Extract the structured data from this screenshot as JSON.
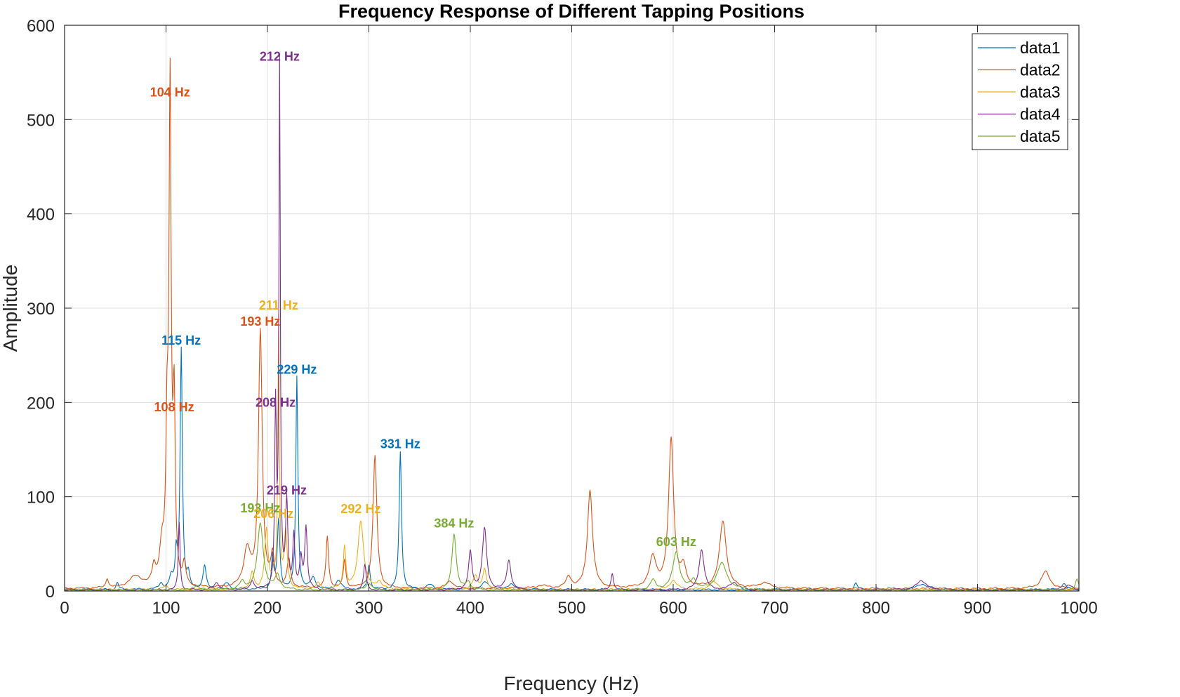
{
  "chart_data": {
    "type": "line",
    "title": "Frequency Response of Different Tapping Positions",
    "xlabel": "Frequency (Hz)",
    "ylabel": "Amplitude",
    "xlim": [
      0,
      1000
    ],
    "ylim": [
      0,
      600
    ],
    "xticks": [
      0,
      100,
      200,
      300,
      400,
      500,
      600,
      700,
      800,
      900,
      1000
    ],
    "yticks": [
      0,
      100,
      200,
      300,
      400,
      500,
      600
    ],
    "grid": true,
    "legend_position": "top-right",
    "series": [
      {
        "name": "data1",
        "color": "#0072BD",
        "baseline": 1.5,
        "peaks": [
          {
            "x": 52,
            "y": 7,
            "w": 1.5
          },
          {
            "x": 95,
            "y": 6,
            "w": 2
          },
          {
            "x": 105,
            "y": 12,
            "w": 2
          },
          {
            "x": 110,
            "y": 35,
            "w": 1.2
          },
          {
            "x": 115,
            "y": 255,
            "w": 1.3
          },
          {
            "x": 122,
            "y": 14,
            "w": 1.5
          },
          {
            "x": 138,
            "y": 25,
            "w": 1.8
          },
          {
            "x": 160,
            "y": 7,
            "w": 3
          },
          {
            "x": 205,
            "y": 35,
            "w": 1.2
          },
          {
            "x": 211,
            "y": 73,
            "w": 1.5
          },
          {
            "x": 229,
            "y": 225,
            "w": 1.2
          },
          {
            "x": 245,
            "y": 12,
            "w": 3
          },
          {
            "x": 270,
            "y": 10,
            "w": 3
          },
          {
            "x": 300,
            "y": 26,
            "w": 1.5
          },
          {
            "x": 331,
            "y": 146,
            "w": 1.4
          },
          {
            "x": 360,
            "y": 5,
            "w": 4
          },
          {
            "x": 415,
            "y": 8,
            "w": 4
          },
          {
            "x": 440,
            "y": 6,
            "w": 4
          },
          {
            "x": 780,
            "y": 7,
            "w": 2
          },
          {
            "x": 845,
            "y": 6,
            "w": 6
          },
          {
            "x": 985,
            "y": 6,
            "w": 3
          }
        ]
      },
      {
        "name": "data2",
        "color": "#D95319",
        "baseline": 2.5,
        "peaks": [
          {
            "x": 42,
            "y": 10,
            "w": 1.5
          },
          {
            "x": 70,
            "y": 12,
            "w": 8
          },
          {
            "x": 88,
            "y": 18,
            "w": 2
          },
          {
            "x": 96,
            "y": 38,
            "w": 3
          },
          {
            "x": 101,
            "y": 135,
            "w": 1.4
          },
          {
            "x": 104,
            "y": 515,
            "w": 1.3
          },
          {
            "x": 108,
            "y": 180,
            "w": 1.3
          },
          {
            "x": 118,
            "y": 22,
            "w": 1.8
          },
          {
            "x": 180,
            "y": 40,
            "w": 4
          },
          {
            "x": 193,
            "y": 272,
            "w": 2.2
          },
          {
            "x": 205,
            "y": 32,
            "w": 2
          },
          {
            "x": 221,
            "y": 30,
            "w": 2
          },
          {
            "x": 259,
            "y": 55,
            "w": 1.5
          },
          {
            "x": 276,
            "y": 30,
            "w": 1.5
          },
          {
            "x": 306,
            "y": 140,
            "w": 2.3
          },
          {
            "x": 380,
            "y": 8,
            "w": 4
          },
          {
            "x": 470,
            "y": 3,
            "w": 6
          },
          {
            "x": 497,
            "y": 12,
            "w": 3
          },
          {
            "x": 518,
            "y": 104,
            "w": 3
          },
          {
            "x": 580,
            "y": 32,
            "w": 4
          },
          {
            "x": 598,
            "y": 158,
            "w": 3
          },
          {
            "x": 610,
            "y": 20,
            "w": 3
          },
          {
            "x": 649,
            "y": 71,
            "w": 4
          },
          {
            "x": 690,
            "y": 6,
            "w": 6
          },
          {
            "x": 967,
            "y": 18,
            "w": 5
          }
        ]
      },
      {
        "name": "data3",
        "color": "#EDB120",
        "baseline": 1.5,
        "peaks": [
          {
            "x": 100,
            "y": 4,
            "w": 3
          },
          {
            "x": 185,
            "y": 18,
            "w": 2
          },
          {
            "x": 199,
            "y": 62,
            "w": 2
          },
          {
            "x": 206,
            "y": 14,
            "w": 1.5
          },
          {
            "x": 211,
            "y": 285,
            "w": 0.9
          },
          {
            "x": 218,
            "y": 60,
            "w": 1.8
          },
          {
            "x": 250,
            "y": 6,
            "w": 3
          },
          {
            "x": 276,
            "y": 45,
            "w": 1.5
          },
          {
            "x": 292,
            "y": 73,
            "w": 3.3
          },
          {
            "x": 310,
            "y": 8,
            "w": 3
          },
          {
            "x": 405,
            "y": 14,
            "w": 3
          },
          {
            "x": 414,
            "y": 22,
            "w": 2
          },
          {
            "x": 600,
            "y": 10,
            "w": 4
          },
          {
            "x": 640,
            "y": 8,
            "w": 5
          }
        ]
      },
      {
        "name": "data4",
        "color": "#7E2F8E",
        "baseline": 1,
        "peaks": [
          {
            "x": 113,
            "y": 72,
            "w": 1
          },
          {
            "x": 150,
            "y": 8,
            "w": 3
          },
          {
            "x": 185,
            "y": 10,
            "w": 2
          },
          {
            "x": 208,
            "y": 190,
            "w": 1
          },
          {
            "x": 212,
            "y": 553,
            "w": 0.8
          },
          {
            "x": 219,
            "y": 92,
            "w": 1.3
          },
          {
            "x": 226,
            "y": 55,
            "w": 1.2
          },
          {
            "x": 233,
            "y": 32,
            "w": 1.5
          },
          {
            "x": 238,
            "y": 65,
            "w": 1.5
          },
          {
            "x": 296,
            "y": 27,
            "w": 1.5
          },
          {
            "x": 400,
            "y": 40,
            "w": 2
          },
          {
            "x": 414,
            "y": 65,
            "w": 2.5
          },
          {
            "x": 438,
            "y": 31,
            "w": 2.5
          },
          {
            "x": 540,
            "y": 18,
            "w": 1.5
          },
          {
            "x": 628,
            "y": 43,
            "w": 3
          },
          {
            "x": 660,
            "y": 8,
            "w": 5
          },
          {
            "x": 845,
            "y": 10,
            "w": 6
          },
          {
            "x": 990,
            "y": 5,
            "w": 4
          }
        ]
      },
      {
        "name": "data5",
        "color": "#77AC30",
        "baseline": 1,
        "peaks": [
          {
            "x": 130,
            "y": 5,
            "w": 3
          },
          {
            "x": 175,
            "y": 8,
            "w": 3
          },
          {
            "x": 193,
            "y": 70,
            "w": 3.5
          },
          {
            "x": 210,
            "y": 15,
            "w": 3
          },
          {
            "x": 300,
            "y": 8,
            "w": 3
          },
          {
            "x": 384,
            "y": 60,
            "w": 2.5
          },
          {
            "x": 398,
            "y": 8,
            "w": 3
          },
          {
            "x": 580,
            "y": 10,
            "w": 3
          },
          {
            "x": 603,
            "y": 40,
            "w": 4
          },
          {
            "x": 620,
            "y": 10,
            "w": 3
          },
          {
            "x": 648,
            "y": 28,
            "w": 6
          },
          {
            "x": 998,
            "y": 12,
            "w": 2
          }
        ]
      }
    ],
    "annotations": [
      {
        "text": "104 Hz",
        "x": 104,
        "y": 520,
        "series": "data2"
      },
      {
        "text": "108 Hz",
        "x": 108,
        "y": 186,
        "series": "data2"
      },
      {
        "text": "115 Hz",
        "x": 115,
        "y": 257,
        "series": "data1"
      },
      {
        "text": "193 Hz",
        "x": 193,
        "y": 277,
        "series": "data2"
      },
      {
        "text": "211 Hz",
        "x": 211,
        "y": 294,
        "series": "data3"
      },
      {
        "text": "212 Hz",
        "x": 212,
        "y": 558,
        "series": "data4"
      },
      {
        "text": "208 Hz",
        "x": 208,
        "y": 191,
        "series": "data4"
      },
      {
        "text": "229 Hz",
        "x": 229,
        "y": 226,
        "series": "data1"
      },
      {
        "text": "331 Hz",
        "x": 331,
        "y": 147,
        "series": "data1"
      },
      {
        "text": "219 Hz",
        "x": 219,
        "y": 98,
        "series": "data4"
      },
      {
        "text": "193 Hz",
        "x": 193,
        "y": 79,
        "series": "data5"
      },
      {
        "text": "206 Hz",
        "x": 206,
        "y": 73,
        "series": "data3"
      },
      {
        "text": "292 Hz",
        "x": 292,
        "y": 78,
        "series": "data3"
      },
      {
        "text": "384 Hz",
        "x": 384,
        "y": 63,
        "series": "data5"
      },
      {
        "text": "603 Hz",
        "x": 603,
        "y": 43,
        "series": "data5"
      }
    ]
  }
}
